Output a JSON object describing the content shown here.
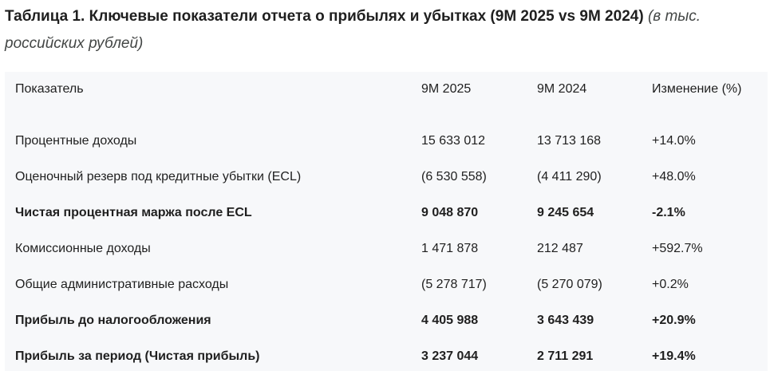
{
  "caption": {
    "title": "Таблица 1. Ключевые показатели отчета о прибылях и убытках (9M 2025 vs 9M 2024)",
    "units": "(в тыс. российских рублей)"
  },
  "table": {
    "headers": [
      "Показатель",
      "9M 2025",
      "9M 2024",
      "Изменение (%)"
    ],
    "rows": [
      {
        "cells": [
          "Процентные доходы",
          "15 633 012",
          "13 713 168",
          "+14.0%"
        ],
        "bold": false
      },
      {
        "cells": [
          "Оценочный резерв под кредитные убытки (ECL)",
          "(6 530 558)",
          "(4 411 290)",
          "+48.0%"
        ],
        "bold": false
      },
      {
        "cells": [
          "Чистая процентная маржа после ECL",
          "9 048 870",
          "9 245 654",
          "-2.1%"
        ],
        "bold": true
      },
      {
        "cells": [
          "Комиссионные доходы",
          "1 471 878",
          "212 487",
          "+592.7%"
        ],
        "bold": false
      },
      {
        "cells": [
          "Общие административные расходы",
          "(5 278 717)",
          "(5 270 079)",
          "+0.2%"
        ],
        "bold": false
      },
      {
        "cells": [
          "Прибыль до налогообложения",
          "4 405 988",
          "3 643 439",
          "+20.9%"
        ],
        "bold": true
      },
      {
        "cells": [
          "Прибыль за период (Чистая прибыль)",
          "3 237 044",
          "2 711 291",
          "+19.4%"
        ],
        "bold": true
      }
    ]
  }
}
